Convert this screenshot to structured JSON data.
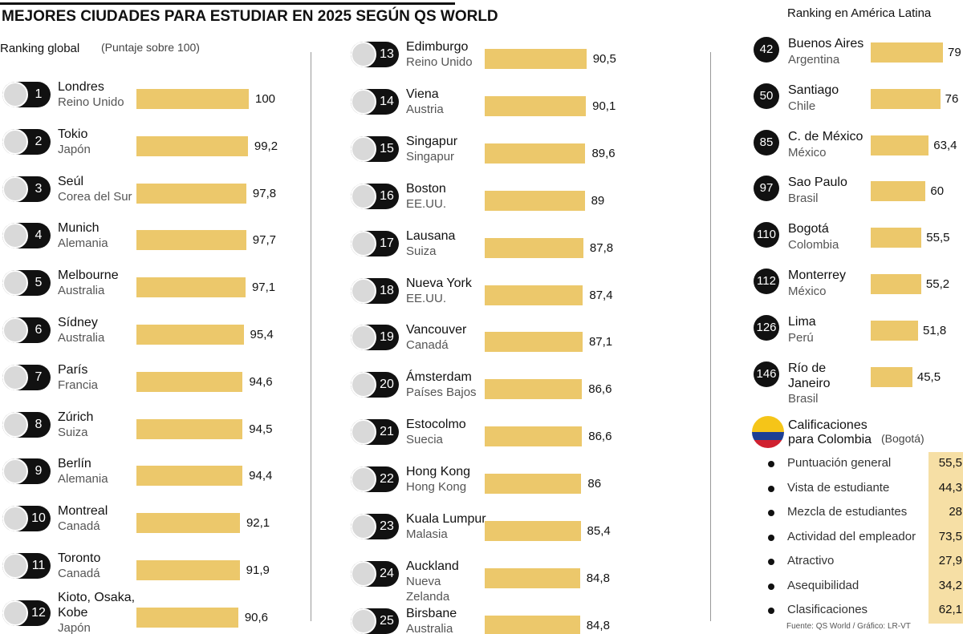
{
  "title": "MEJORES CIUDADES PARA ESTUDIAR EN 2025 SEGÚN QS WORLD",
  "global": {
    "label": "Ranking global",
    "note": "(Puntaje sobre 100)",
    "items": [
      {
        "rank": 1,
        "city": "Londres",
        "country": "Reino Unido",
        "value": 100
      },
      {
        "rank": 2,
        "city": "Tokio",
        "country": "Japón",
        "value": 99.2,
        "value_label": "99,2"
      },
      {
        "rank": 3,
        "city": "Seúl",
        "country": "Corea del Sur",
        "value": 97.8,
        "value_label": "97,8"
      },
      {
        "rank": 4,
        "city": "Munich",
        "country": "Alemania",
        "value": 97.7,
        "value_label": "97,7"
      },
      {
        "rank": 5,
        "city": "Melbourne",
        "country": "Australia",
        "value": 97.1,
        "value_label": "97,1"
      },
      {
        "rank": 6,
        "city": "Sídney",
        "country": "Australia",
        "value": 95.4,
        "value_label": "95,4"
      },
      {
        "rank": 7,
        "city": "París",
        "country": "Francia",
        "value": 94.6,
        "value_label": "94,6"
      },
      {
        "rank": 8,
        "city": "Zúrich",
        "country": "Suiza",
        "value": 94.5,
        "value_label": "94,5"
      },
      {
        "rank": 9,
        "city": "Berlín",
        "country": "Alemania",
        "value": 94.4,
        "value_label": "94,4"
      },
      {
        "rank": 10,
        "city": "Montreal",
        "country": "Canadá",
        "value": 92.1,
        "value_label": "92,1"
      },
      {
        "rank": 11,
        "city": "Toronto",
        "country": "Canadá",
        "value": 91.9,
        "value_label": "91,9"
      },
      {
        "rank": 12,
        "city": "Kioto, Osaka, Kobe",
        "country": "Japón",
        "value": 90.6,
        "value_label": "90,6"
      },
      {
        "rank": 13,
        "city": "Edimburgo",
        "country": "Reino Unido",
        "value": 90.5,
        "value_label": "90,5"
      },
      {
        "rank": 14,
        "city": "Viena",
        "country": "Austria",
        "value": 90.1,
        "value_label": "90,1"
      },
      {
        "rank": 15,
        "city": "Singapur",
        "country": "Singapur",
        "value": 89.6,
        "value_label": "89,6"
      },
      {
        "rank": 16,
        "city": "Boston",
        "country": "EE.UU.",
        "value": 89
      },
      {
        "rank": 17,
        "city": "Lausana",
        "country": "Suiza",
        "value": 87.8,
        "value_label": "87,8"
      },
      {
        "rank": 18,
        "city": "Nueva York",
        "country": "EE.UU.",
        "value": 87.4,
        "value_label": "87,4"
      },
      {
        "rank": 19,
        "city": "Vancouver",
        "country": "Canadá",
        "value": 87.1,
        "value_label": "87,1"
      },
      {
        "rank": 20,
        "city": "Ámsterdam",
        "country": "Países Bajos",
        "value": 86.6,
        "value_label": "86,6"
      },
      {
        "rank": 21,
        "city": "Estocolmo",
        "country": "Suecia",
        "value": 86.6,
        "value_label": "86,6"
      },
      {
        "rank": 22,
        "city": "Hong Kong",
        "country": "Hong Kong",
        "value": 86
      },
      {
        "rank": 23,
        "city": "Kuala Lumpur",
        "country": "Malasia",
        "value": 85.4,
        "value_label": "85,4"
      },
      {
        "rank": 24,
        "city": "Auckland",
        "country": "Nueva Zelanda",
        "value": 84.8,
        "value_label": "84,8"
      },
      {
        "rank": 25,
        "city": "Birsbane",
        "country": "Australia",
        "value": 84.8,
        "value_label": "84,8"
      }
    ]
  },
  "latam": {
    "label": "Ranking en América Latina",
    "items": [
      {
        "rank": 42,
        "city": "Buenos Aires",
        "country": "Argentina",
        "value": 79
      },
      {
        "rank": 50,
        "city": "Santiago",
        "country": "Chile",
        "value": 76
      },
      {
        "rank": 85,
        "city": "C. de México",
        "country": "México",
        "value": 63.4,
        "value_label": "63,4"
      },
      {
        "rank": 97,
        "city": "Sao Paulo",
        "country": "Brasil",
        "value": 60
      },
      {
        "rank": 110,
        "city": "Bogotá",
        "country": "Colombia",
        "value": 55.5,
        "value_label": "55,5"
      },
      {
        "rank": 112,
        "city": "Monterrey",
        "country": "México",
        "value": 55.2,
        "value_label": "55,2"
      },
      {
        "rank": 126,
        "city": "Lima",
        "country": "Perú",
        "value": 51.8,
        "value_label": "51,8"
      },
      {
        "rank": 146,
        "city": "Río de Janeiro",
        "country": "Brasil",
        "value": 45.5,
        "value_label": "45,5"
      }
    ]
  },
  "colombia": {
    "title": "Calificaciones para Colombia",
    "note": "(Bogotá)",
    "items": [
      {
        "name": "Puntuación general",
        "value": 55.5,
        "value_label": "55,5"
      },
      {
        "name": "Vista de estudiante",
        "value": 44.3,
        "value_label": "44,3"
      },
      {
        "name": "Mezcla de estudiantes",
        "value": 28
      },
      {
        "name": "Actividad del empleador",
        "value": 73.5,
        "value_label": "73,5"
      },
      {
        "name": "Atractivo",
        "value": 27.9,
        "value_label": "27,9"
      },
      {
        "name": "Asequibilidad",
        "value": 34.2,
        "value_label": "34,2"
      },
      {
        "name": "Clasificaciones",
        "value": 62.1,
        "value_label": "62,1"
      }
    ]
  },
  "source": "Fuente: QS World / Gráfico: LR-VT"
}
